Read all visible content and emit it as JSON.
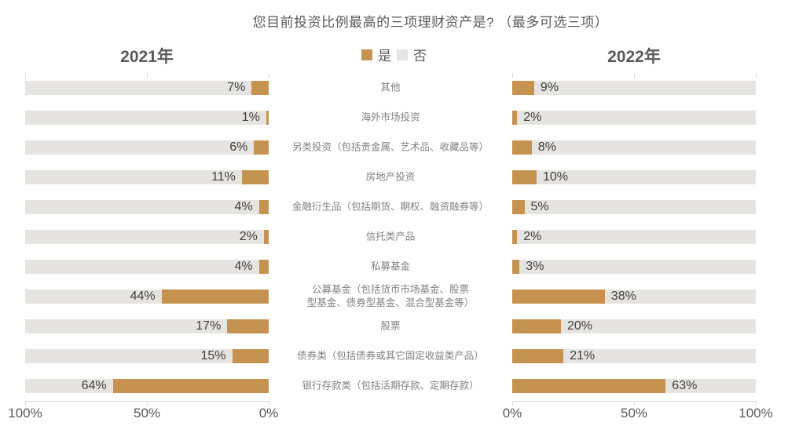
{
  "colors": {
    "yes": "#C6924F",
    "no": "#E5E4E1",
    "axis": "#D9D9D9",
    "title_text": "#595959",
    "value_text": "#404040",
    "category_text": "#808080"
  },
  "chart_data": {
    "type": "bar",
    "layout": "butterfly-horizontal",
    "title": "您目前投资比例最高的三项理财资产是? （最多可选三项）",
    "legend": [
      "是",
      "否"
    ],
    "categories": [
      "其他",
      "海外市场投资",
      "另类投资（包括贵金属、艺术品、收藏品等）",
      "房地产投资",
      "金融衍生品（包括期货、期权、融资融券等）",
      "信托类产品",
      "私募基金",
      "公募基金（包括货币市场基金、股票\n型基金、债券型基金、混合型基金等）",
      "股票",
      "债券类（包括债券或其它固定收益类产品）",
      "银行存款类（包括活期存款、定期存款）"
    ],
    "series": [
      {
        "name": "2021年",
        "side": "left",
        "values": [
          7,
          1,
          6,
          11,
          4,
          2,
          4,
          44,
          17,
          15,
          64
        ]
      },
      {
        "name": "2022年",
        "side": "right",
        "values": [
          9,
          2,
          8,
          10,
          5,
          2,
          3,
          38,
          20,
          21,
          63
        ]
      }
    ],
    "value_suffix": "%",
    "xlim": [
      0,
      100
    ],
    "grid": false,
    "axes": {
      "left_ticks": {
        "labels": [
          "100%",
          "50%",
          "0%"
        ],
        "positions_pct": [
          0,
          50,
          100
        ]
      },
      "right_ticks": {
        "labels": [
          "0%",
          "50%",
          "100%"
        ],
        "positions_pct": [
          0,
          50,
          100
        ]
      }
    }
  }
}
